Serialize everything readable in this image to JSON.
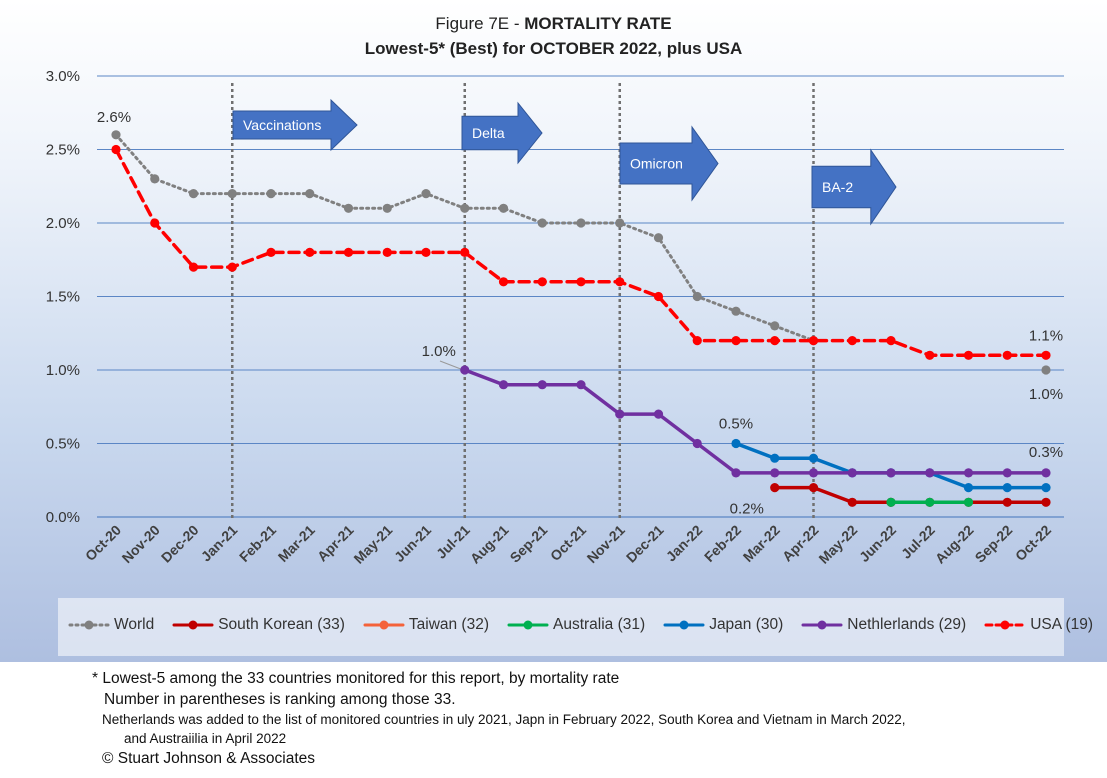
{
  "title": {
    "line1_prefix": "Figure 7E  - ",
    "line1_bold": "MORTALITY RATE",
    "line2": "Lowest-5* (Best) for OCTOBER 2022, plus USA"
  },
  "chart_data": {
    "type": "line",
    "categories": [
      "Oct-20",
      "Nov-20",
      "Dec-20",
      "Jan-21",
      "Feb-21",
      "Mar-21",
      "Apr-21",
      "May-21",
      "Jun-21",
      "Jul-21",
      "Aug-21",
      "Sep-21",
      "Oct-21",
      "Nov-21",
      "Dec-21",
      "Jan-22",
      "Feb-22",
      "Mar-22",
      "Apr-22",
      "May-22",
      "Jun-22",
      "Jul-22",
      "Aug-22",
      "Sep-22",
      "Oct-22"
    ],
    "ylim": [
      0,
      3.0
    ],
    "yticks": [
      "0.0%",
      "0.5%",
      "1.0%",
      "1.5%",
      "2.0%",
      "2.5%",
      "3.0%"
    ],
    "grid": true,
    "legend_position": "bottom",
    "series": [
      {
        "name": "World",
        "color": "#808080",
        "style": "dotted",
        "values": [
          2.6,
          2.3,
          2.2,
          2.2,
          2.2,
          2.2,
          2.1,
          2.1,
          2.2,
          2.1,
          2.1,
          2.0,
          2.0,
          2.0,
          1.9,
          1.5,
          1.4,
          1.3,
          1.2,
          null,
          null,
          null,
          null,
          null,
          1.0
        ]
      },
      {
        "name": "South Korean (33)",
        "color": "#c00000",
        "style": "solid",
        "values": [
          null,
          null,
          null,
          null,
          null,
          null,
          null,
          null,
          null,
          null,
          null,
          null,
          null,
          null,
          null,
          null,
          null,
          0.2,
          0.2,
          0.1,
          0.1,
          0.1,
          0.1,
          0.1,
          0.1
        ]
      },
      {
        "name": "Taiwan (32)",
        "color": "#f4623a",
        "style": "solid",
        "values": [
          null,
          null,
          null,
          null,
          null,
          null,
          null,
          null,
          null,
          null,
          null,
          null,
          null,
          null,
          null,
          null,
          null,
          null,
          null,
          null,
          null,
          null,
          null,
          null,
          null
        ]
      },
      {
        "name": "Australia (31)",
        "color": "#00b050",
        "style": "solid",
        "values": [
          null,
          null,
          null,
          null,
          null,
          null,
          null,
          null,
          null,
          null,
          null,
          null,
          null,
          null,
          null,
          null,
          null,
          null,
          null,
          null,
          0.1,
          0.1,
          0.1,
          null,
          null
        ]
      },
      {
        "name": "Japan (30)",
        "color": "#0070c0",
        "style": "solid",
        "values": [
          null,
          null,
          null,
          null,
          null,
          null,
          null,
          null,
          null,
          null,
          null,
          null,
          null,
          null,
          null,
          null,
          0.5,
          0.4,
          0.4,
          0.3,
          0.3,
          0.3,
          0.2,
          0.2,
          0.2
        ]
      },
      {
        "name": "Nethlerlands (29)",
        "color": "#7030a0",
        "style": "solid",
        "values": [
          null,
          null,
          null,
          null,
          null,
          null,
          null,
          null,
          null,
          1.0,
          0.9,
          0.9,
          0.9,
          0.7,
          0.7,
          0.5,
          0.3,
          0.3,
          0.3,
          0.3,
          0.3,
          0.3,
          0.3,
          0.3,
          0.3
        ]
      },
      {
        "name": "USA (19)",
        "color": "#ff0000",
        "style": "dashed",
        "values": [
          2.5,
          2.0,
          1.7,
          1.7,
          1.8,
          1.8,
          1.8,
          1.8,
          1.8,
          1.8,
          1.6,
          1.6,
          1.6,
          1.6,
          1.5,
          1.2,
          1.2,
          1.2,
          1.2,
          1.2,
          1.2,
          1.1,
          1.1,
          1.1,
          1.1
        ]
      }
    ],
    "data_labels": [
      {
        "text": "2.6%",
        "series": "World",
        "index": 0
      },
      {
        "text": "1.0%",
        "series": "Nethlerlands (29)",
        "index": 9
      },
      {
        "text": "0.5%",
        "series": "Japan (30)",
        "index": 16
      },
      {
        "text": "0.2%",
        "series": "South Korean (33)",
        "index": 17
      },
      {
        "text": "1.1%",
        "series": "USA (19)",
        "index": 24
      },
      {
        "text": "1.0%",
        "series": "World",
        "index": 24
      },
      {
        "text": "0.3%",
        "series": "Nethlerlands (29)",
        "index": 24
      }
    ],
    "annotations": [
      {
        "text": "Vaccinations",
        "at": "Jan-21"
      },
      {
        "text": "Delta",
        "at": "Jul-21"
      },
      {
        "text": "Omicron",
        "at": "Nov-21"
      },
      {
        "text": "BA-2",
        "at": "Apr-22"
      }
    ]
  },
  "notes": {
    "line1": "* Lowest-5 among the 33 countries monitored for this report, by mortality rate",
    "line2": "Number in parentheses is ranking among those 33.",
    "line3": "Netherlands was added to the list of monitored countries in uly 2021, Japn in February 2022, South Korea and Vietnam in March 2022,",
    "line4": "and Austraiilia in April 2022",
    "line5": "© Stuart Johnson & Associates"
  },
  "colors": {
    "grid": "#5b86c5",
    "arrow_fill": "#4472c4",
    "arrow_stroke": "#2f5597",
    "marker_line": "#707070"
  }
}
